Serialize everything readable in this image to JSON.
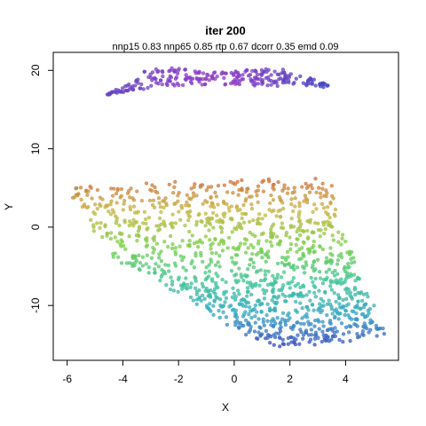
{
  "chart_data": {
    "type": "scatter",
    "title": "iter 200",
    "subtitle": "nnp15 0.83 nnp65 0.85 rtp 0.67 dcorr 0.35 emd 0.09",
    "xlabel": "X",
    "ylabel": "Y",
    "xlim": [
      -6.5,
      5.9
    ],
    "ylim": [
      -17.0,
      22.3
    ],
    "x_ticks": [
      -6,
      -4,
      -2,
      0,
      2,
      4
    ],
    "y_ticks": [
      -10,
      0,
      10,
      20
    ],
    "grid": false,
    "legend": "none",
    "point_color_scale": [
      "#d06a3a",
      "#c7b846",
      "#7fcf4a",
      "#3fc694",
      "#3aa9c4",
      "#3e49c0",
      "#8a3ec6",
      "#b14ac1"
    ],
    "clusters": [
      {
        "name": "",
        "shape": "band",
        "bottom_edge": [
          [
            -4.6,
            16.8
          ],
          [
            -3.5,
            17.5
          ],
          [
            -2.0,
            18.1
          ],
          [
            0.0,
            18.2
          ],
          [
            1.5,
            17.9
          ],
          [
            2.5,
            18.0
          ],
          [
            3.4,
            17.8
          ],
          [
            2.2,
            18.3
          ]
        ],
        "top_edge": [
          [
            -4.6,
            17.0
          ],
          [
            -3.6,
            18.5
          ],
          [
            -3.2,
            20.2
          ],
          [
            -2.5,
            20.5
          ],
          [
            -1.0,
            19.8
          ],
          [
            0.0,
            19.9
          ],
          [
            1.0,
            20.2
          ],
          [
            1.8,
            20.1
          ],
          [
            2.5,
            19.3
          ],
          [
            3.4,
            18.3
          ]
        ],
        "count": 260
      },
      {
        "name": "",
        "shape": "quad",
        "corners": [
          [
            -6.0,
            5.0
          ],
          [
            3.3,
            6.4
          ],
          [
            5.4,
            -14.0
          ],
          [
            1.2,
            -15.4
          ]
        ],
        "left_edge_mid": [
          -4.3,
          -3.8
        ],
        "count": 1300
      }
    ]
  }
}
